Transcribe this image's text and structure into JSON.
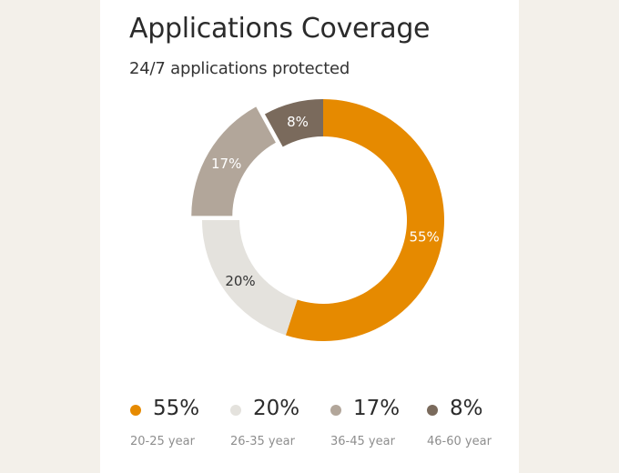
{
  "card": {
    "title": "Applications Coverage",
    "subtitle": "24/7 applications protected"
  },
  "colors": {
    "background": "#f3f0ea",
    "card": "#ffffff",
    "seg_20_25": "#e68a00",
    "seg_26_35": "#e4e2dd",
    "seg_36_45": "#b2a69a",
    "seg_46_60": "#7a6a5c"
  },
  "segments": [
    {
      "value_label": "55%",
      "range": "20-25 year",
      "color": "#e68a00"
    },
    {
      "value_label": "20%",
      "range": "26-35 year",
      "color": "#e4e2dd"
    },
    {
      "value_label": "17%",
      "range": "36-45 year",
      "color": "#b2a69a"
    },
    {
      "value_label": "8%",
      "range": "46-60 year",
      "color": "#7a6a5c"
    }
  ],
  "chart_data": {
    "type": "pie",
    "variant": "donut",
    "title": "Applications Coverage",
    "subtitle": "24/7 applications protected",
    "categories": [
      "20-25 year",
      "26-35 year",
      "36-45 year",
      "46-60 year"
    ],
    "values": [
      55,
      20,
      17,
      8
    ],
    "unit": "%",
    "colors": [
      "#e68a00",
      "#e4e2dd",
      "#b2a69a",
      "#7a6a5c"
    ],
    "data_labels": [
      "55%",
      "20%",
      "17%",
      "8%"
    ],
    "exploded_segment": "36-45 year",
    "legend_position": "bottom",
    "start_angle": "12 o'clock, clockwise"
  }
}
